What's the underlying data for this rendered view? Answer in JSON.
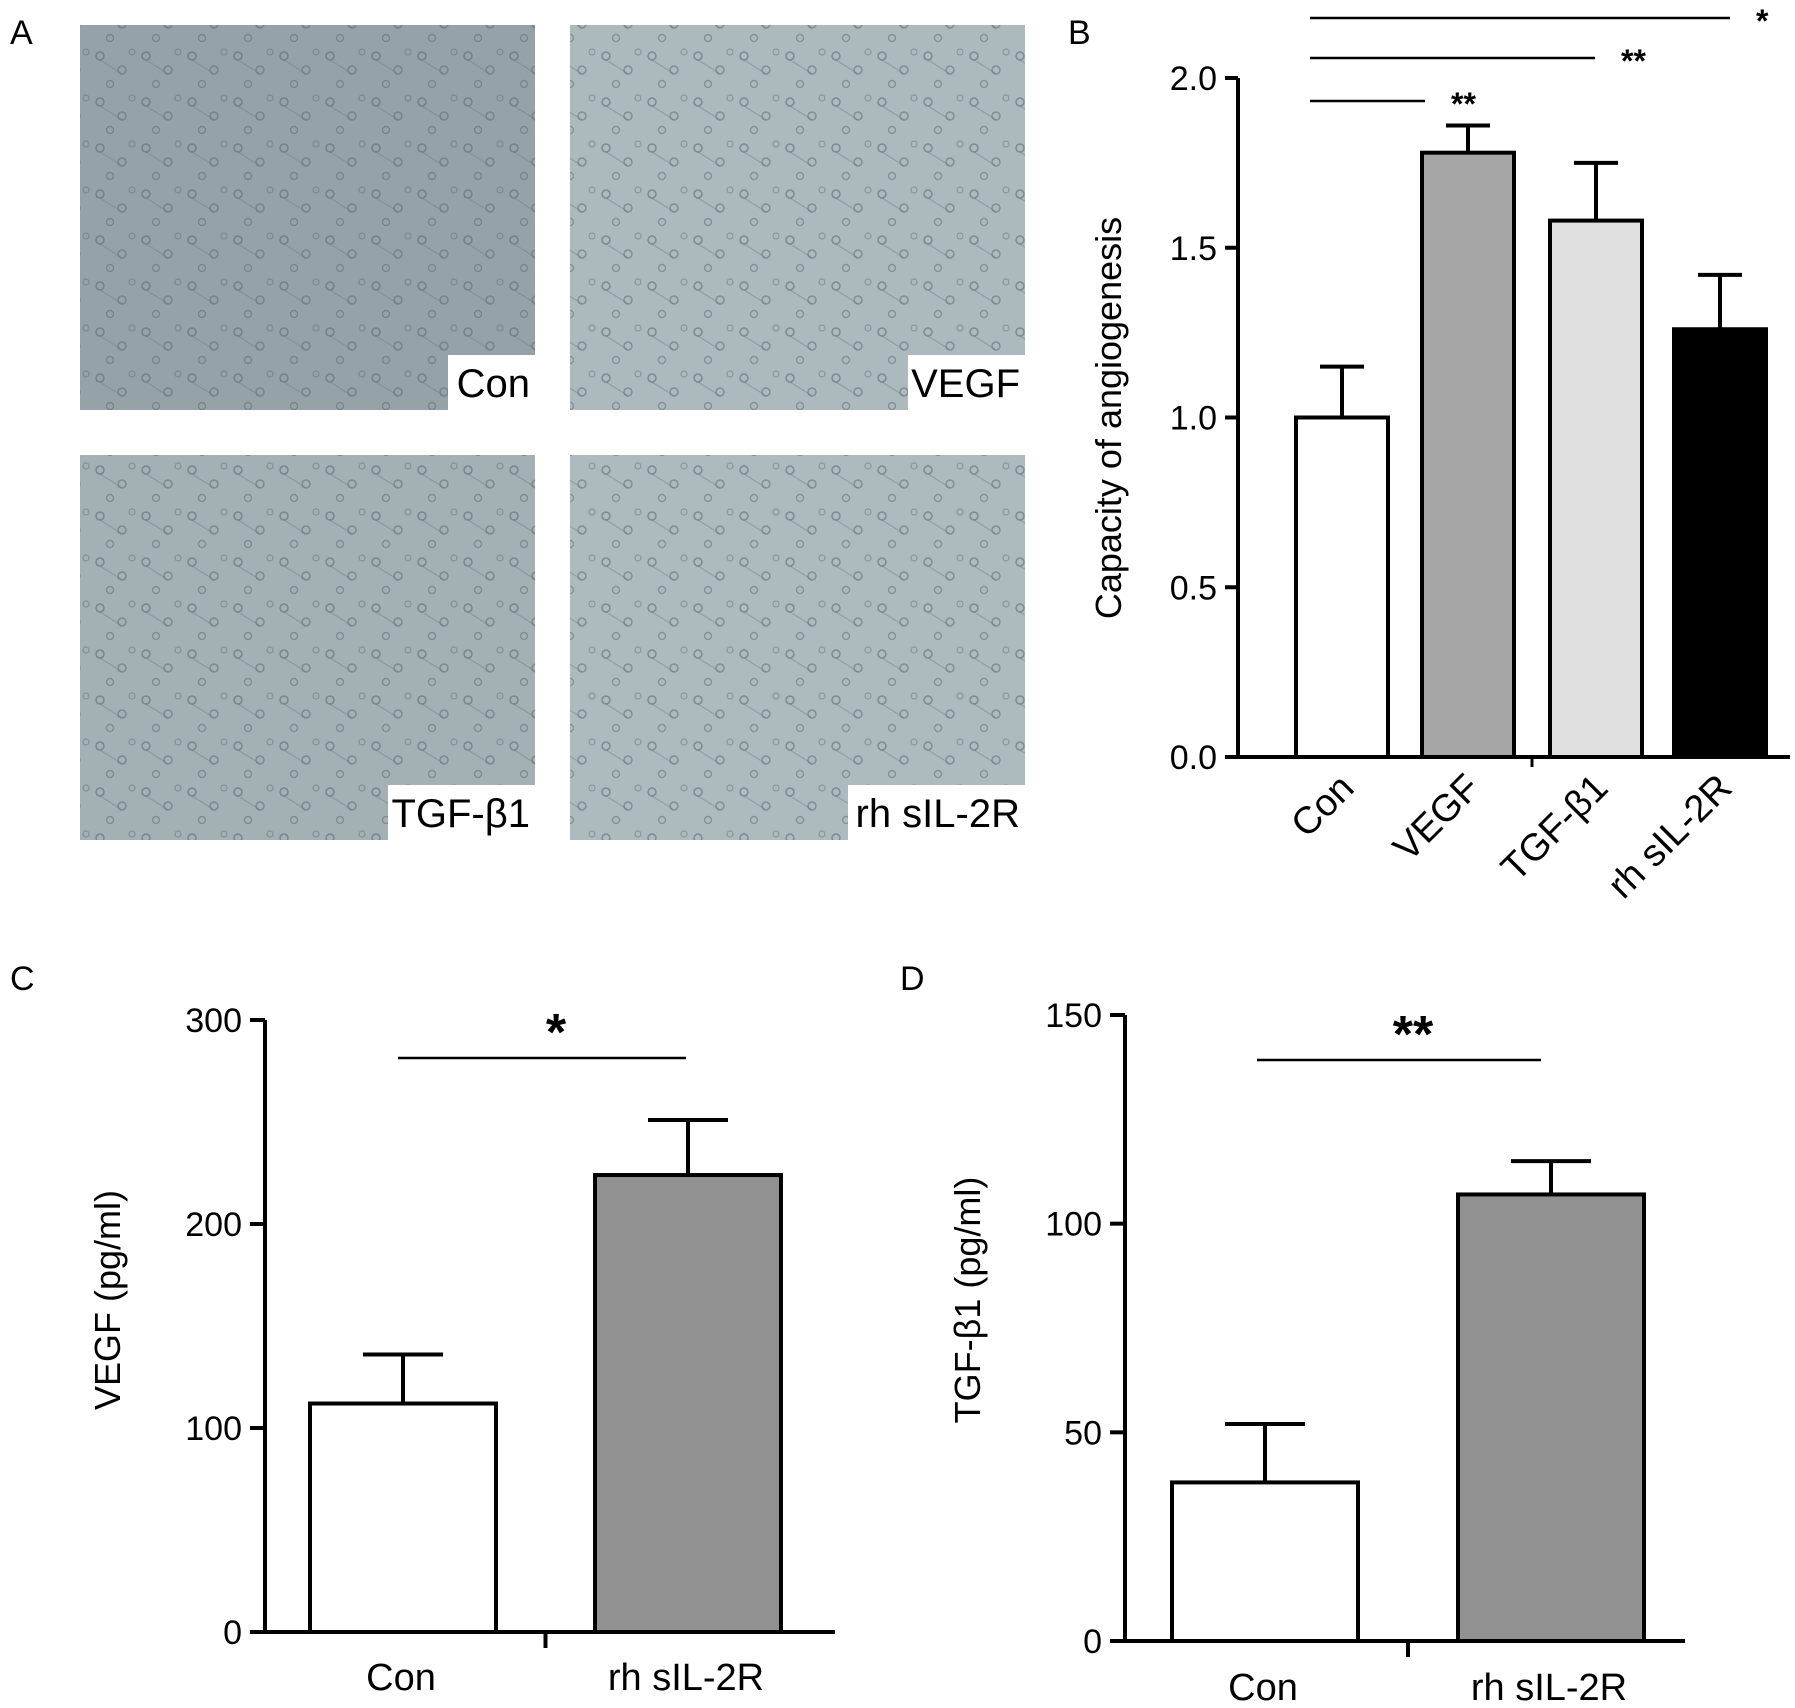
{
  "panels": {
    "A": "A",
    "B": "B",
    "C": "C",
    "D": "D"
  },
  "micrographs": [
    {
      "label": "Con"
    },
    {
      "label": "VEGF"
    },
    {
      "label": "TGF-β1"
    },
    {
      "label": "rh sIL-2R"
    }
  ],
  "chart_data": [
    {
      "panel": "B",
      "type": "bar",
      "categories": [
        "Con",
        "VEGF",
        "TGF-β1",
        "rh sIL-2R"
      ],
      "values": [
        1.0,
        1.78,
        1.58,
        1.26
      ],
      "errors": [
        0.15,
        0.08,
        0.17,
        0.16
      ],
      "colors": [
        "#ffffff",
        "#a6a6a6",
        "#e0e0e0",
        "#000000"
      ],
      "ylabel": "Capacity of angiogenesis",
      "ylim": [
        0,
        2.0
      ],
      "yticks": [
        "0.0",
        "0.5",
        "1.0",
        "1.5",
        "2.0"
      ],
      "significance": [
        {
          "from": "Con",
          "to": "VEGF",
          "label": "**"
        },
        {
          "from": "Con",
          "to": "TGF-β1",
          "label": "**"
        },
        {
          "from": "Con",
          "to": "rh sIL-2R",
          "label": "*"
        }
      ]
    },
    {
      "panel": "C",
      "type": "bar",
      "categories": [
        "Con",
        "rh sIL-2R"
      ],
      "values": [
        112,
        224
      ],
      "errors": [
        24,
        27
      ],
      "colors": [
        "#ffffff",
        "#919191"
      ],
      "ylabel": "VEGF (pg/ml)",
      "ylim": [
        0,
        300
      ],
      "yticks": [
        "0",
        "100",
        "200",
        "300"
      ],
      "significance": [
        {
          "from": "Con",
          "to": "rh sIL-2R",
          "label": "*"
        }
      ]
    },
    {
      "panel": "D",
      "type": "bar",
      "categories": [
        "Con",
        "rh sIL-2R"
      ],
      "values": [
        38,
        107
      ],
      "errors": [
        14,
        8
      ],
      "colors": [
        "#ffffff",
        "#919191"
      ],
      "ylabel": "TGF-β1 (pg/ml)",
      "ylim": [
        0,
        150
      ],
      "yticks": [
        "0",
        "50",
        "100",
        "150"
      ],
      "significance": [
        {
          "from": "Con",
          "to": "rh sIL-2R",
          "label": "**"
        }
      ]
    }
  ]
}
